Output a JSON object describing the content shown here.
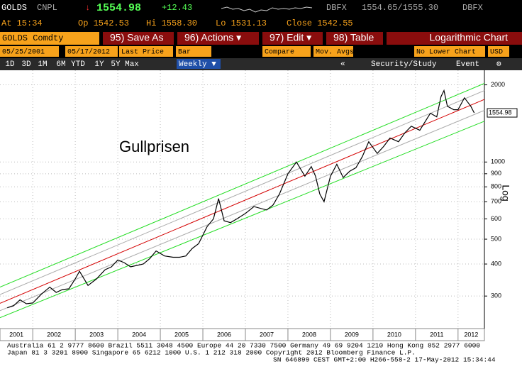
{
  "header": {
    "ticker": "GOLDS",
    "source": "CNPL",
    "direction": "↓",
    "last": "1554.98",
    "change": "+12.43",
    "bid_source": "DBFX",
    "bid_ask": "1554.65/1555.30",
    "ask_source": "DBFX",
    "time": "At 15:34",
    "open": "Op 1542.53",
    "high": "Hi 1558.30",
    "low": "Lo 1531.13",
    "close": "Close 1542.55",
    "security": "GOLDS Comdty",
    "buttons": [
      "95) Save As",
      "96) Actions ▾",
      "97) Edit ▾",
      "98) Table"
    ],
    "chart_mode": "Logarithmic Chart",
    "controls": [
      "05/25/2001",
      "-",
      "05/17/2012",
      "Last Price",
      "Bar",
      "Compare",
      "Mov. Avgs",
      "No Lower Chart",
      "USD"
    ],
    "periods": [
      "1D",
      "3D",
      "1M",
      "6M",
      "YTD",
      "1Y",
      "5Y",
      "Max"
    ],
    "frequency": "Weekly ▼",
    "tools": [
      "«",
      "Security/Study",
      "Event",
      "⚙"
    ]
  },
  "chart_data": {
    "type": "line",
    "annotation": "Gullprisen",
    "y_label": "Log",
    "log_scale": true,
    "grid": true,
    "xlim": [
      2001.23,
      2012.62
    ],
    "ylim": [
      224,
      2280
    ],
    "xticks": [
      {
        "value": 2001,
        "label": "2001"
      },
      {
        "value": 2002,
        "label": "2002"
      },
      {
        "value": 2003,
        "label": "2003"
      },
      {
        "value": 2004,
        "label": "2004"
      },
      {
        "value": 2005,
        "label": "2005"
      },
      {
        "value": 2006,
        "label": "2006"
      },
      {
        "value": 2007,
        "label": "2007"
      },
      {
        "value": 2008,
        "label": "2008"
      },
      {
        "value": 2009,
        "label": "2009"
      },
      {
        "value": 2010,
        "label": "2010"
      },
      {
        "value": 2011,
        "label": "2011"
      },
      {
        "value": 2012,
        "label": "2012"
      }
    ],
    "yticks": [
      300,
      400,
      500,
      600,
      700,
      800,
      900,
      1000,
      2000
    ],
    "series": [
      {
        "color": "#000000",
        "x": [
          2001.4,
          2001.55,
          2001.7,
          2001.85,
          2002.0,
          2002.2,
          2002.4,
          2002.55,
          2002.7,
          2002.85,
          2003.0,
          2003.1,
          2003.3,
          2003.5,
          2003.7,
          2003.85,
          2004.0,
          2004.15,
          2004.3,
          2004.45,
          2004.6,
          2004.75,
          2004.9,
          2005.1,
          2005.3,
          2005.45,
          2005.6,
          2005.75,
          2005.9,
          2006.1,
          2006.25,
          2006.37,
          2006.5,
          2006.65,
          2006.8,
          2007.0,
          2007.2,
          2007.5,
          2007.65,
          2007.8,
          2008.0,
          2008.2,
          2008.4,
          2008.55,
          2008.65,
          2008.75,
          2008.85,
          2009.0,
          2009.15,
          2009.3,
          2009.45,
          2009.6,
          2009.75,
          2009.9,
          2010.1,
          2010.25,
          2010.4,
          2010.6,
          2010.75,
          2010.9,
          2011.1,
          2011.35,
          2011.5,
          2011.6,
          2011.67,
          2011.75,
          2011.9,
          2012.0,
          2012.15,
          2012.3,
          2012.38
        ],
        "values": [
          270,
          275,
          290,
          280,
          282,
          305,
          325,
          310,
          318,
          320,
          350,
          375,
          330,
          350,
          380,
          390,
          415,
          405,
          390,
          395,
          400,
          420,
          450,
          430,
          425,
          425,
          430,
          460,
          480,
          560,
          600,
          720,
          590,
          580,
          600,
          630,
          670,
          650,
          680,
          750,
          900,
          1000,
          880,
          960,
          880,
          750,
          700,
          880,
          980,
          870,
          920,
          950,
          1050,
          1200,
          1080,
          1150,
          1240,
          1200,
          1300,
          1380,
          1330,
          1550,
          1500,
          1800,
          1900,
          1650,
          1600,
          1600,
          1780,
          1650,
          1554.98
        ]
      },
      {
        "color": "#d40000",
        "x": [
          2001.23,
          2012.62
        ],
        "values": [
          281,
          1754
        ]
      },
      {
        "color": "#22dd22",
        "x": [
          2001.23,
          2012.62
        ],
        "values": [
          325,
          2026
        ]
      },
      {
        "color": "#22dd22",
        "x": [
          2001.23,
          2012.62
        ],
        "values": [
          247,
          1443
        ]
      },
      {
        "color": "#aaaaaa",
        "x": [
          2001.23,
          2012.62
        ],
        "values": [
          304,
          1900
        ]
      },
      {
        "color": "#aaaaaa",
        "x": [
          2001.23,
          2012.62
        ],
        "values": [
          263,
          1590
        ]
      }
    ]
  },
  "footer": [
    "Australia 61 2 9777 8600 Brazil 5511 3048 4500 Europe 44 20 7330 7500 Germany 49 69 9204 1210 Hong Kong 852 2977 6000",
    "Japan 81 3 3201 8900        Singapore 65 6212 1000        U.S. 1 212 318 2000        Copyright 2012 Bloomberg Finance L.P.",
    "SN 646899 CEST  GMT+2:00 H266-558-2 17-May-2012 15:34:44"
  ]
}
